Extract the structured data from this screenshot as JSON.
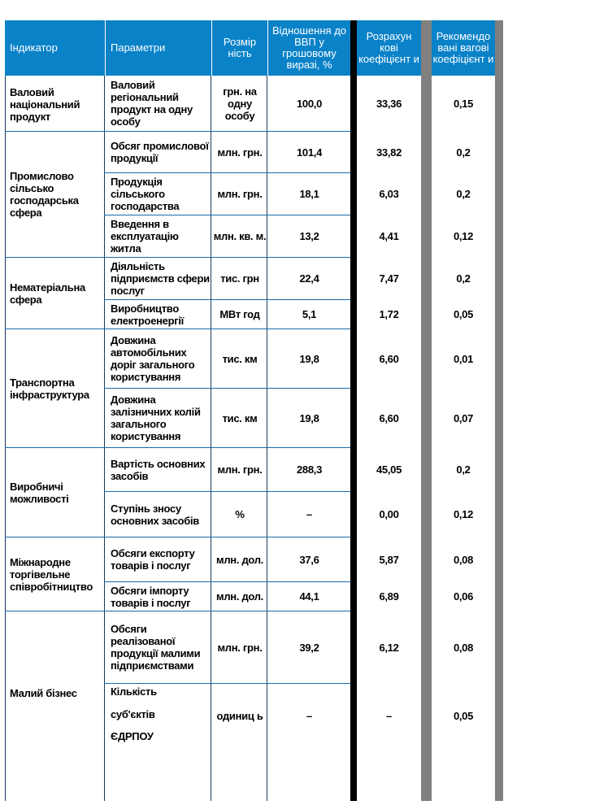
{
  "table": {
    "headers": {
      "indicator": "Індикатор",
      "parameters": "Параметри",
      "dimension": "Розмір ність",
      "gdp_ratio": "Відношення до ВВП у грошовому виразі, %",
      "calc_coef": "Розрахун кові коефіцієнт и",
      "rec_weights": "Рекомендо вані вагові коефіцієнт и"
    },
    "groups": [
      {
        "indicator": "Валовий національний продукт"
      },
      {
        "indicator": "Промислово сільсько господарська сфера"
      },
      {
        "indicator": "Нематеріальна сфера"
      },
      {
        "indicator": "Транспортна інфраструктура"
      },
      {
        "indicator": "Виробничі можливості"
      },
      {
        "indicator": "Міжнародне торгівельне співробітництво"
      },
      {
        "indicator": "Малий бізнес"
      }
    ],
    "rows": [
      {
        "param": "Валовий регіональний продукт на одну особу",
        "dim": "грн. на одну особу",
        "value": "100,0",
        "calc": "33,36",
        "rec": "0,15"
      },
      {
        "param": "Обсяг промислової продукції",
        "dim": "млн. грн.",
        "value": "101,4",
        "calc": "33,82",
        "rec": "0,2"
      },
      {
        "param": "Продукція сільського господарства",
        "dim": "млн. грн.",
        "value": "18,1",
        "calc": "6,03",
        "rec": "0,2"
      },
      {
        "param": "Введення в експлуатацію житла",
        "dim": "млн. кв. м.",
        "value": "13,2",
        "calc": "4,41",
        "rec": "0,12"
      },
      {
        "param": "Діяльність підприємств сфери послуг",
        "dim": "тис. грн",
        "value": "22,4",
        "calc": "7,47",
        "rec": "0,2"
      },
      {
        "param": "Виробництво електроенергії",
        "dim": "МВт год",
        "value": "5,1",
        "calc": "1,72",
        "rec": "0,05"
      },
      {
        "param": "Довжина автомобільних доріг загального користування",
        "dim": "тис. км",
        "value": "19,8",
        "calc": "6,60",
        "rec": "0,01"
      },
      {
        "param": "Довжина залізничних колій загального користування",
        "dim": "тис. км",
        "value": "19,8",
        "calc": "6,60",
        "rec": "0,07"
      },
      {
        "param": "Вартість основних засобів",
        "dim": "млн. грн.",
        "value": "288,3",
        "calc": "45,05",
        "rec": "0,2"
      },
      {
        "param": "Ступінь зносу основних засобів",
        "dim": "%",
        "value": "–",
        "calc": "0,00",
        "rec": "0,12"
      },
      {
        "param": "Обсяги експорту товарів і послуг",
        "dim": "млн. дол.",
        "value": "37,6",
        "calc": "5,87",
        "rec": "0,08"
      },
      {
        "param": "Обсяги імпорту товарів і послуг",
        "dim": "млн. дол.",
        "value": "44,1",
        "calc": "6,89",
        "rec": "0,06"
      },
      {
        "param": "Обсяги реалізованої продукції малими підприємствами",
        "dim": "млн. грн.",
        "value": "39,2",
        "calc": "6,12",
        "rec": "0,08"
      },
      {
        "param_lines": [
          "Кількість",
          "суб'єктів",
          "ЄДРПОУ"
        ],
        "dim": "одиниц ь",
        "value": "–",
        "calc": "–",
        "rec": "0,05"
      }
    ]
  }
}
